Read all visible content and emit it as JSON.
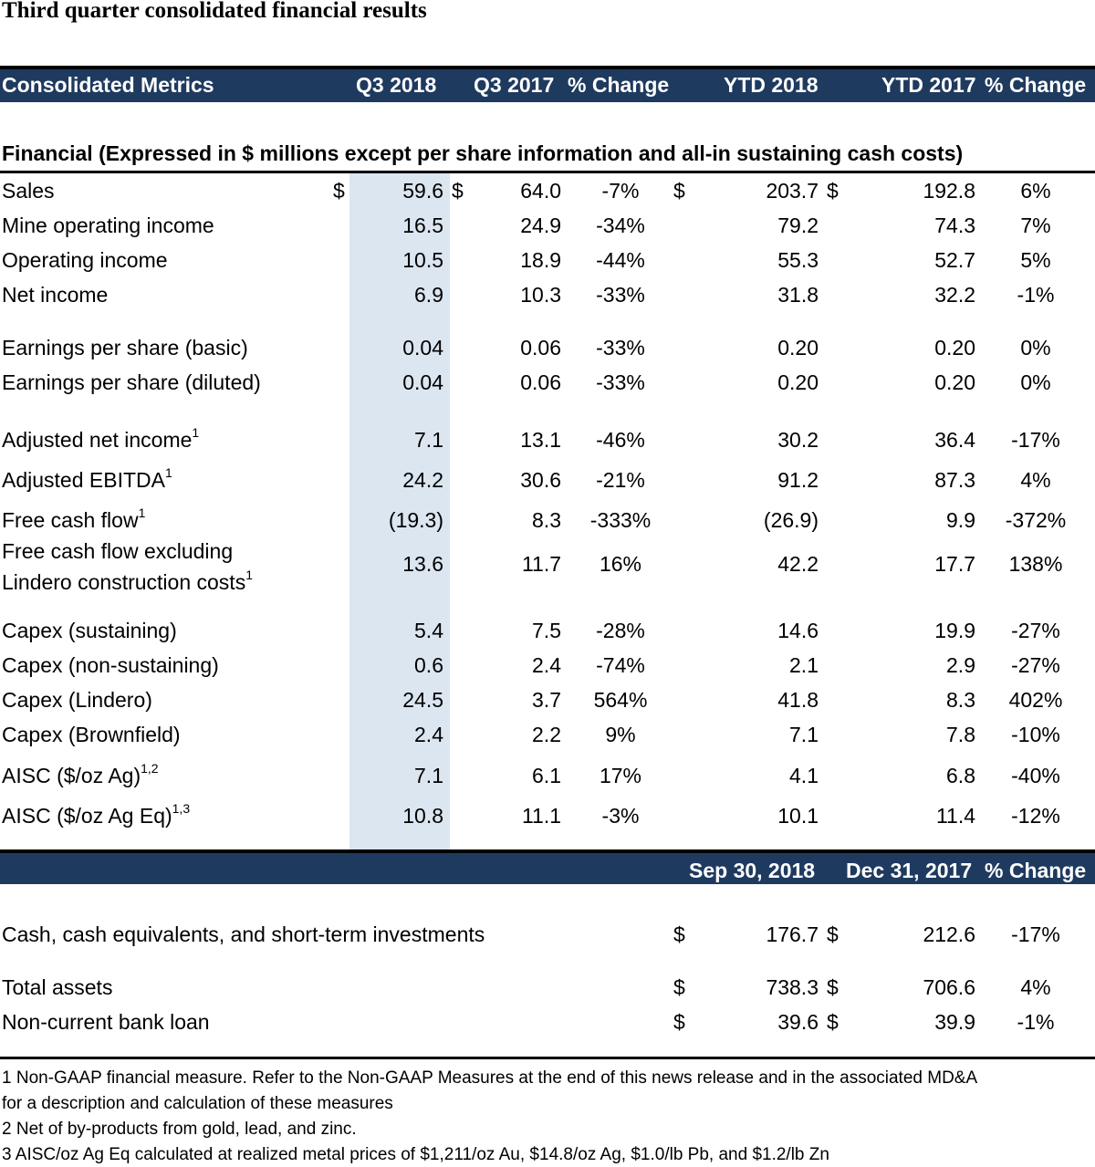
{
  "title": "Third quarter consolidated financial results",
  "header1": {
    "metrics": "Consolidated Metrics",
    "q3_2018": "Q3 2018",
    "q3_2017": "Q3 2017",
    "pct1": "% Change",
    "ytd_2018": "YTD 2018",
    "ytd_2017": "YTD 2017",
    "pct2": "% Change"
  },
  "section_title": "Financial (Expressed in $ millions except per share information and all-in sustaining cash costs)",
  "rows": [
    {
      "label": "Sales",
      "sup": "",
      "c1": "$",
      "q3_2018": "59.6",
      "c2": "$",
      "q3_2017": "64.0",
      "pct1": "-7%",
      "c3": "$",
      "ytd_2018": "203.7",
      "c4": "$",
      "ytd_2017": "192.8",
      "pct2": "6%"
    },
    {
      "label": "Mine operating income",
      "sup": "",
      "q3_2018": "16.5",
      "q3_2017": "24.9",
      "pct1": "-34%",
      "ytd_2018": "79.2",
      "ytd_2017": "74.3",
      "pct2": "7%"
    },
    {
      "label": "Operating income",
      "sup": "",
      "q3_2018": "10.5",
      "q3_2017": "18.9",
      "pct1": "-44%",
      "ytd_2018": "55.3",
      "ytd_2017": "52.7",
      "pct2": "5%"
    },
    {
      "label": "Net income",
      "sup": "",
      "q3_2018": "6.9",
      "q3_2017": "10.3",
      "pct1": "-33%",
      "ytd_2018": "31.8",
      "ytd_2017": "32.2",
      "pct2": "-1%"
    },
    {
      "label": "Earnings per share (basic)",
      "sup": "",
      "q3_2018": "0.04",
      "q3_2017": "0.06",
      "pct1": "-33%",
      "ytd_2018": "0.20",
      "ytd_2017": "0.20",
      "pct2": "0%"
    },
    {
      "label": "Earnings per share (diluted)",
      "sup": "",
      "q3_2018": "0.04",
      "q3_2017": "0.06",
      "pct1": "-33%",
      "ytd_2018": "0.20",
      "ytd_2017": "0.20",
      "pct2": "0%"
    },
    {
      "label": "Adjusted net income",
      "sup": "1",
      "q3_2018": "7.1",
      "q3_2017": "13.1",
      "pct1": "-46%",
      "ytd_2018": "30.2",
      "ytd_2017": "36.4",
      "pct2": "-17%"
    },
    {
      "label": "Adjusted EBITDA",
      "sup": "1",
      "q3_2018": "24.2",
      "q3_2017": "30.6",
      "pct1": "-21%",
      "ytd_2018": "91.2",
      "ytd_2017": "87.3",
      "pct2": "4%"
    },
    {
      "label": "Free cash flow",
      "sup": "1",
      "q3_2018": "(19.3)",
      "q3_2017": "8.3",
      "pct1": "-333%",
      "ytd_2018": "(26.9)",
      "ytd_2017": "9.9",
      "pct2": "-372%"
    },
    {
      "label": "Free cash flow excluding",
      "label2": "Lindero construction costs",
      "sup": "1",
      "q3_2018": "13.6",
      "q3_2017": "11.7",
      "pct1": "16%",
      "ytd_2018": "42.2",
      "ytd_2017": "17.7",
      "pct2": "138%"
    },
    {
      "label": "Capex (sustaining)",
      "sup": "",
      "q3_2018": "5.4",
      "q3_2017": "7.5",
      "pct1": "-28%",
      "ytd_2018": "14.6",
      "ytd_2017": "19.9",
      "pct2": "-27%"
    },
    {
      "label": "Capex (non-sustaining)",
      "sup": "",
      "q3_2018": "0.6",
      "q3_2017": "2.4",
      "pct1": "-74%",
      "ytd_2018": "2.1",
      "ytd_2017": "2.9",
      "pct2": "-27%"
    },
    {
      "label": "Capex (Lindero)",
      "sup": "",
      "q3_2018": "24.5",
      "q3_2017": "3.7",
      "pct1": "564%",
      "ytd_2018": "41.8",
      "ytd_2017": "8.3",
      "pct2": "402%"
    },
    {
      "label": "Capex (Brownfield)",
      "sup": "",
      "q3_2018": "2.4",
      "q3_2017": "2.2",
      "pct1": "9%",
      "ytd_2018": "7.1",
      "ytd_2017": "7.8",
      "pct2": "-10%"
    },
    {
      "label": "AISC ($/oz Ag)",
      "sup": "1,2",
      "q3_2018": "7.1",
      "q3_2017": "6.1",
      "pct1": "17%",
      "ytd_2018": "4.1",
      "ytd_2017": "6.8",
      "pct2": "-40%"
    },
    {
      "label": "AISC ($/oz Ag Eq)",
      "sup": "1,3",
      "q3_2018": "10.8",
      "q3_2017": "11.1",
      "pct1": "-3%",
      "ytd_2018": "10.1",
      "ytd_2017": "11.4",
      "pct2": "-12%"
    }
  ],
  "header2": {
    "sep_2018": "Sep 30, 2018",
    "dec_2017": "Dec 31, 2017",
    "pct": "% Change"
  },
  "balance_rows": [
    {
      "label": "Cash, cash equivalents, and short-term investments",
      "c1": "$",
      "sep_2018": "176.7",
      "c2": "$",
      "dec_2017": "212.6",
      "pct": "-17%"
    },
    {
      "label": "Total assets",
      "c1": "$",
      "sep_2018": "738.3",
      "c2": "$",
      "dec_2017": "706.6",
      "pct": "4%"
    },
    {
      "label": "Non-current bank loan",
      "c1": "$",
      "sep_2018": "39.6",
      "c2": "$",
      "dec_2017": "39.9",
      "pct": "-1%"
    }
  ],
  "footnotes": [
    "1 Non-GAAP financial measure. Refer to the Non-GAAP Measures at the end of this news release and in the associated MD&A",
    "for a description and calculation of these measures",
    "2 Net of by-products from gold, lead, and zinc.",
    "3 AISC/oz Ag Eq calculated at realized metal prices of $1,211/oz Au, $14.8/oz Ag, $1.0/lb Pb, and $1.2/lb Zn"
  ]
}
